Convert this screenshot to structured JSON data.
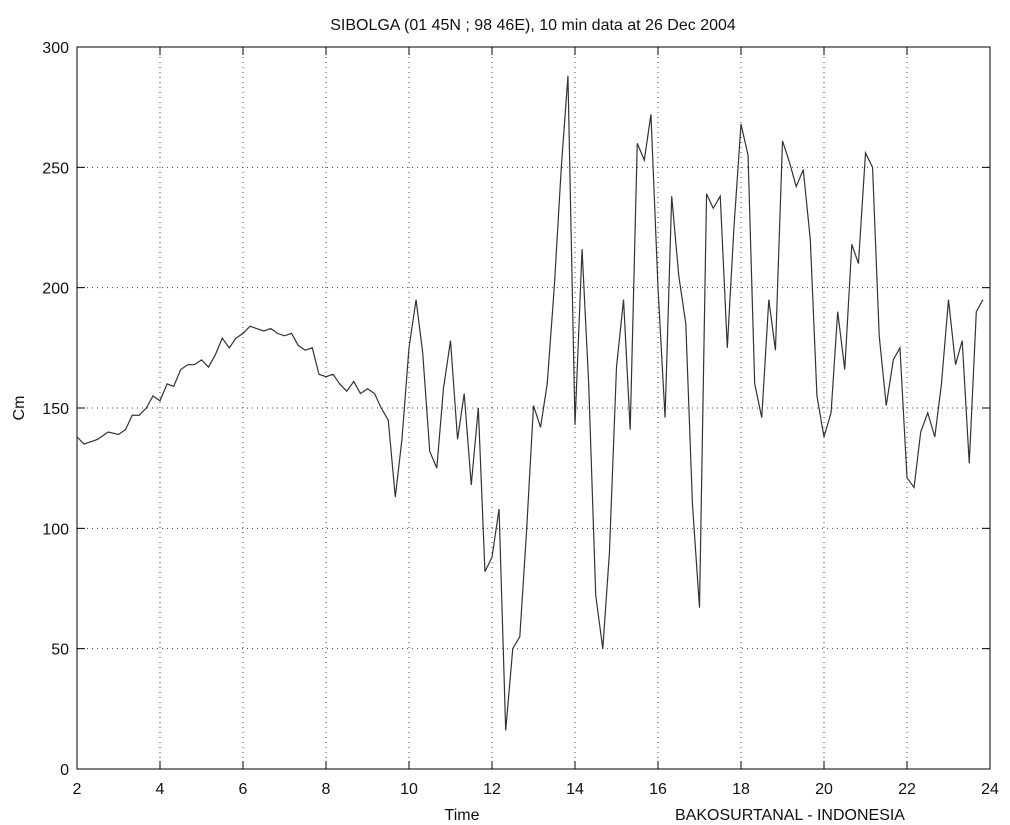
{
  "chart_data": {
    "type": "line",
    "title": "SIBOLGA (01 45N ; 98 46E), 10 min data at 26 Dec 2004",
    "x_label": "Time",
    "y_label": "Cm",
    "annotation": "BAKOSURTANAL - INDONESIA",
    "x": [
      2.0,
      2.17,
      2.5,
      2.75,
      3.0,
      3.17,
      3.33,
      3.5,
      3.67,
      3.83,
      4.0,
      4.17,
      4.33,
      4.5,
      4.67,
      4.83,
      5.0,
      5.17,
      5.33,
      5.5,
      5.67,
      5.83,
      6.0,
      6.17,
      6.33,
      6.5,
      6.67,
      6.83,
      7.0,
      7.17,
      7.33,
      7.5,
      7.67,
      7.83,
      8.0,
      8.17,
      8.33,
      8.5,
      8.67,
      8.83,
      9.0,
      9.17,
      9.33,
      9.5,
      9.67,
      9.83,
      10.0,
      10.17,
      10.33,
      10.5,
      10.67,
      10.83,
      11.0,
      11.17,
      11.33,
      11.5,
      11.67,
      11.83,
      12.0,
      12.17,
      12.33,
      12.5,
      12.67,
      12.83,
      13.0,
      13.17,
      13.33,
      13.5,
      13.67,
      13.83,
      14.0,
      14.17,
      14.33,
      14.5,
      14.67,
      14.83,
      15.0,
      15.17,
      15.33,
      15.5,
      15.67,
      15.83,
      16.0,
      16.17,
      16.33,
      16.5,
      16.67,
      16.83,
      17.0,
      17.17,
      17.33,
      17.5,
      17.67,
      17.83,
      18.0,
      18.17,
      18.33,
      18.5,
      18.67,
      18.83,
      19.0,
      19.17,
      19.33,
      19.5,
      19.67,
      19.83,
      20.0,
      20.17,
      20.33,
      20.5,
      20.67,
      20.83,
      21.0,
      21.17,
      21.33,
      21.5,
      21.67,
      21.83,
      22.0,
      22.17,
      22.33,
      22.5,
      22.67,
      22.83,
      23.0,
      23.17,
      23.33,
      23.5,
      23.67,
      23.83
    ],
    "series": [
      {
        "name": "Cm",
        "color": "#333333",
        "values": [
          138,
          135,
          137,
          140,
          139,
          141,
          147,
          147,
          150,
          155,
          153,
          160,
          159,
          166,
          168,
          168,
          170,
          167,
          172,
          179,
          175,
          179,
          181,
          184,
          183,
          182,
          183,
          181,
          180,
          181,
          176,
          174,
          175,
          164,
          163,
          164,
          160,
          157,
          161,
          156,
          158,
          156,
          150,
          145,
          113,
          137,
          175,
          195,
          173,
          132,
          125,
          158,
          178,
          137,
          156,
          118,
          150,
          82,
          88,
          108,
          16,
          50,
          55,
          98,
          151,
          142,
          160,
          200,
          250,
          288,
          143,
          216,
          160,
          72,
          50,
          90,
          167,
          195,
          141,
          260,
          253,
          272,
          200,
          146,
          238,
          205,
          185,
          110,
          67,
          239,
          233,
          238,
          175,
          225,
          268,
          255,
          160,
          146,
          195,
          174,
          261,
          252,
          242,
          249,
          220,
          155,
          138,
          148,
          190,
          166,
          218,
          210,
          256,
          250,
          180,
          151,
          170,
          175,
          121,
          117,
          140,
          148,
          138,
          160,
          195,
          168,
          178,
          127,
          190,
          195
        ]
      }
    ],
    "xlim": [
      2,
      24
    ],
    "ylim": [
      0,
      300
    ],
    "xticks": [
      2,
      4,
      6,
      8,
      10,
      12,
      14,
      16,
      18,
      20,
      22,
      24
    ],
    "yticks": [
      0,
      50,
      100,
      150,
      200,
      250,
      300
    ],
    "grid": true
  }
}
